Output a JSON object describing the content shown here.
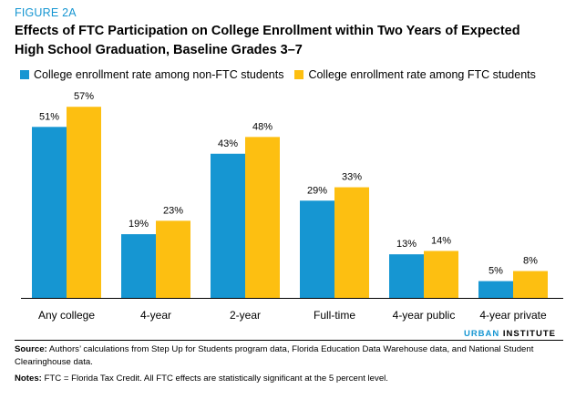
{
  "figure_label": "FIGURE 2A",
  "title": "Effects of FTC Participation on College Enrollment within Two Years of Expected High School Graduation, Baseline Grades 3–7",
  "colors": {
    "non_ftc": "#1696d2",
    "ftc": "#fdbf11",
    "axis": "#000000"
  },
  "chart_data": {
    "type": "bar",
    "categories": [
      "Any college",
      "4-year",
      "2-year",
      "Full-time",
      "4-year public",
      "4-year private"
    ],
    "series": [
      {
        "name": "College enrollment rate among non-FTC students",
        "values": [
          51,
          19,
          43,
          29,
          13,
          5
        ],
        "labels": [
          "51%",
          "19%",
          "43%",
          "29%",
          "13%",
          "5%"
        ]
      },
      {
        "name": "College enrollment rate among FTC students",
        "values": [
          57,
          23,
          48,
          33,
          14,
          8
        ],
        "labels": [
          "57%",
          "23%",
          "48%",
          "33%",
          "14%",
          "8%"
        ]
      }
    ],
    "ylim": [
      0,
      60
    ],
    "grid": false,
    "legend": "top-left"
  },
  "brand": {
    "urban": "URBAN",
    "institute": "INSTITUTE"
  },
  "source": {
    "label": "Source:",
    "text": "Authors’ calculations from Step Up for Students program data, Florida Education Data Warehouse data, and National Student Clearinghouse data."
  },
  "notes": {
    "label": "Notes:",
    "text": "FTC = Florida Tax Credit. All FTC effects are statistically significant at the 5 percent level."
  }
}
